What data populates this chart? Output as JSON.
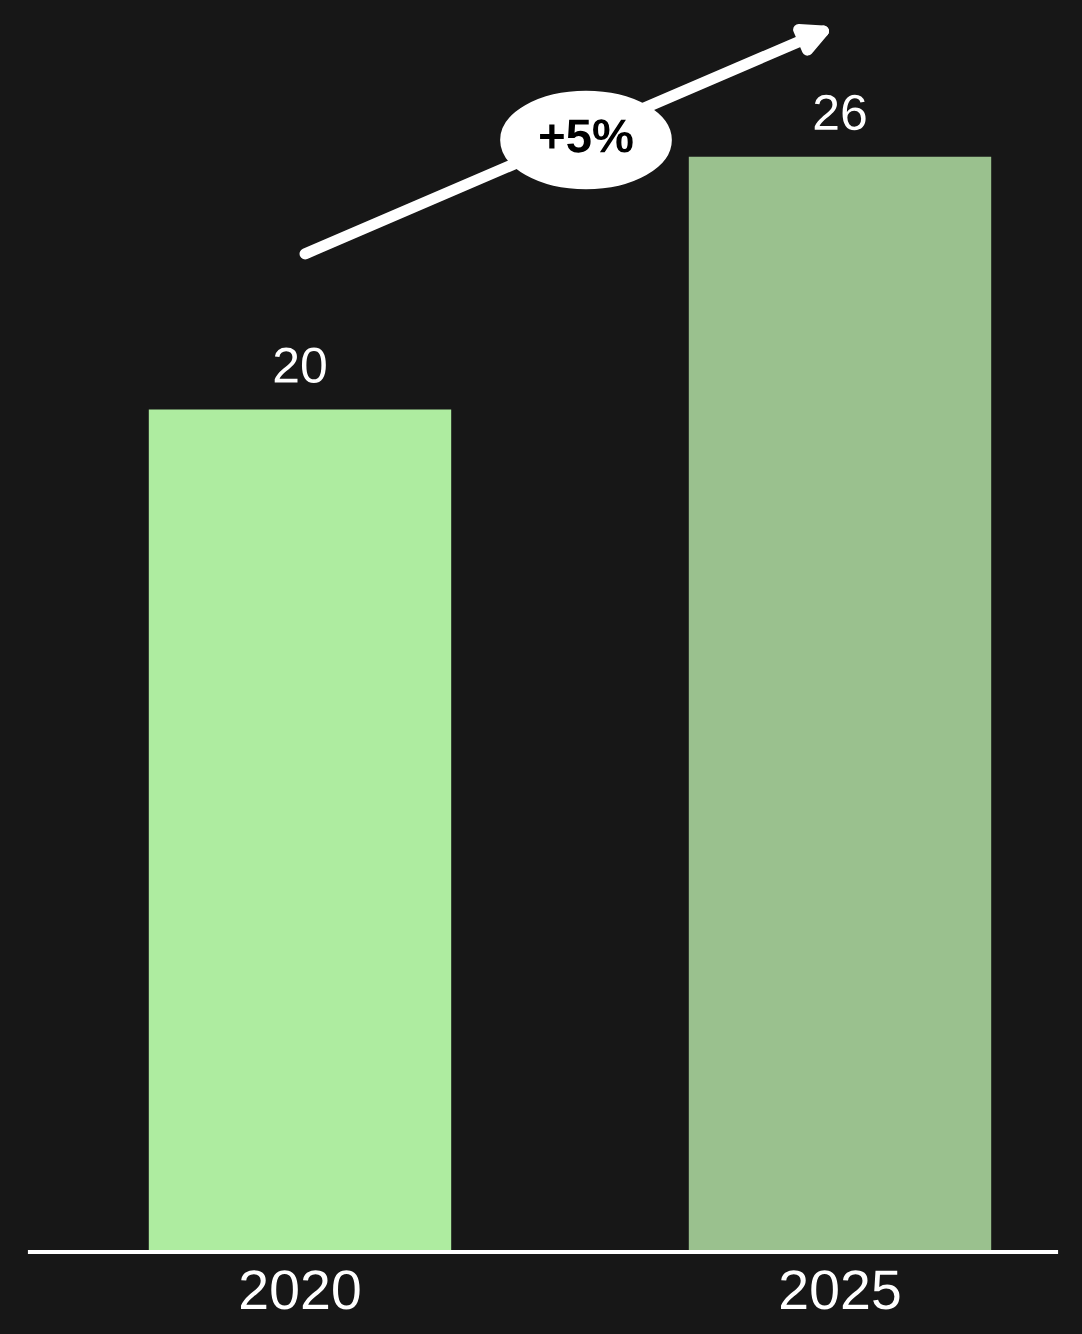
{
  "chart_data": {
    "type": "bar",
    "categories": [
      "2020",
      "2025"
    ],
    "values": [
      20,
      26
    ],
    "colors": [
      "#aeeca0",
      "#9ac18e"
    ],
    "data_labels": true,
    "grid": false,
    "legend": false,
    "annotations": [
      "+5%"
    ]
  }
}
